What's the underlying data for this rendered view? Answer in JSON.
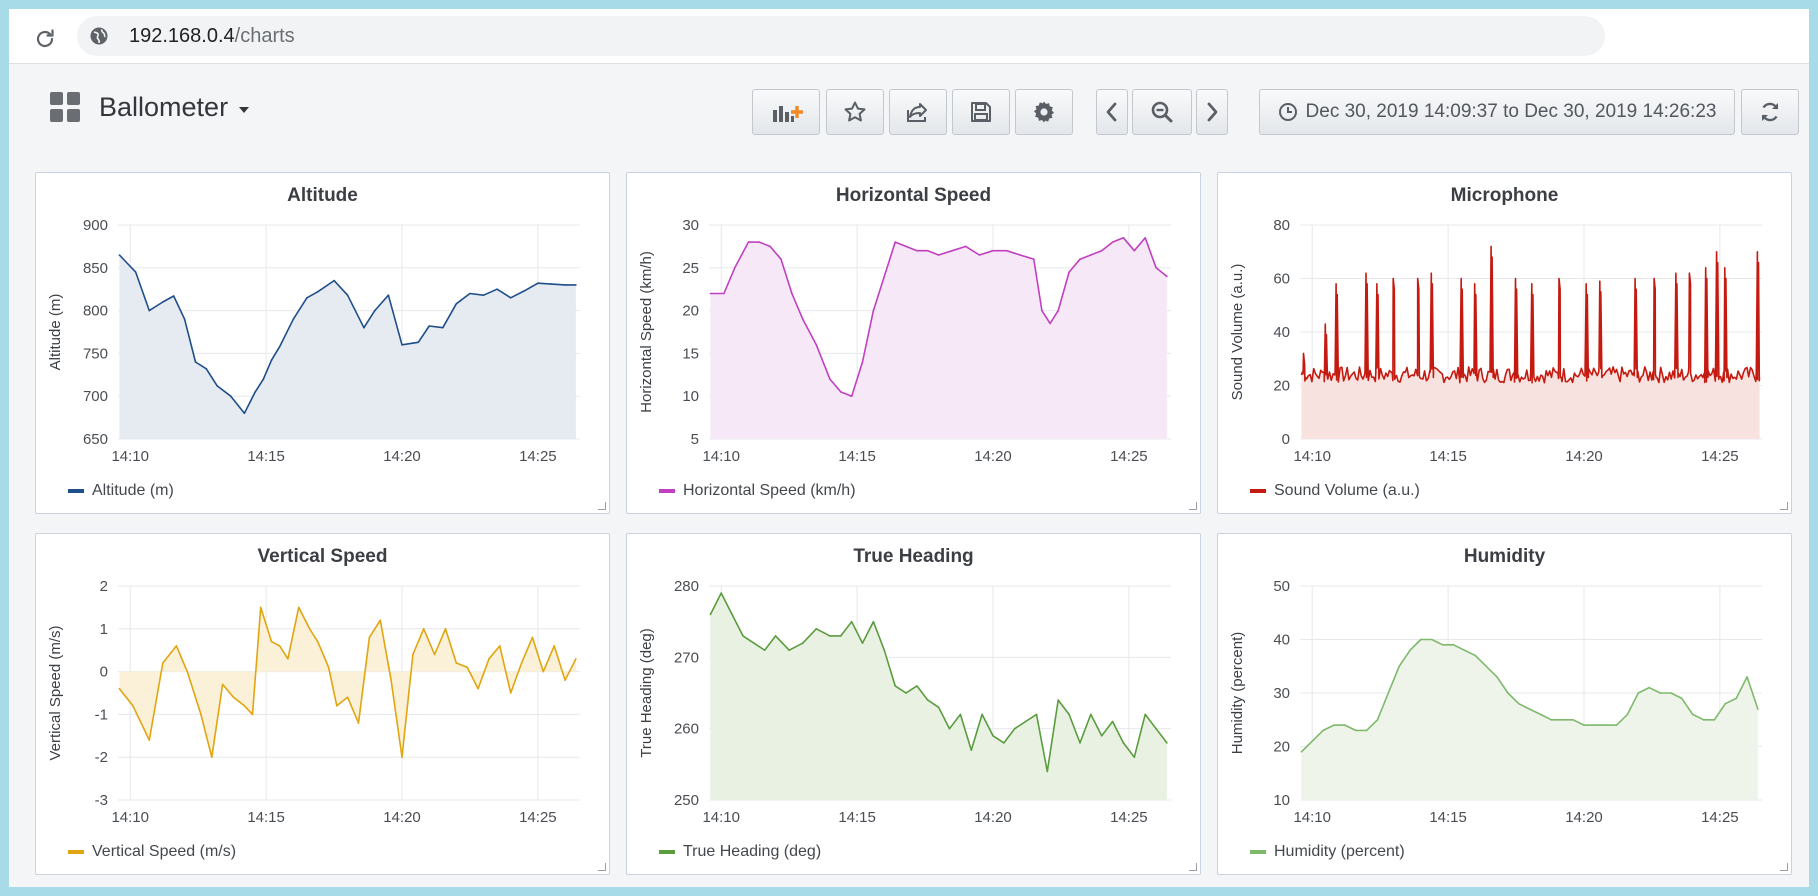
{
  "browser": {
    "url_host": "192.168.0.4",
    "url_path": "/charts"
  },
  "dashboard": {
    "title": "Ballometer"
  },
  "toolbar": {
    "buttons": [
      "add-panel",
      "star",
      "share",
      "save",
      "settings"
    ],
    "time_nav": [
      "back",
      "zoom-out",
      "forward"
    ],
    "time_range": "Dec 30, 2019 14:09:37 to Dec 30, 2019 14:26:23",
    "refresh": "refresh"
  },
  "colors": {
    "altitude": "#1f4e89",
    "horizontal_speed": "#c040c0",
    "microphone": "#c41a10",
    "vertical_speed": "#e0a510",
    "true_heading": "#5a9c3e",
    "humidity": "#7fb96b"
  },
  "panels": [
    {
      "title": "Altitude",
      "legend": "Altitude (m)"
    },
    {
      "title": "Horizontal Speed",
      "legend": "Horizontal Speed (km/h)"
    },
    {
      "title": "Microphone",
      "legend": "Sound Volume (a.u.)"
    },
    {
      "title": "Vertical Speed",
      "legend": "Vertical Speed (m/s)"
    },
    {
      "title": "True Heading",
      "legend": "True Heading (deg)"
    },
    {
      "title": "Humidity",
      "legend": "Humidity (percent)"
    }
  ],
  "chart_data": [
    {
      "type": "area",
      "title": "Altitude",
      "ylabel": "Altitude (m)",
      "ylim": [
        650,
        900
      ],
      "yticks": [
        650,
        700,
        750,
        800,
        850,
        900
      ],
      "xticks": [
        "14:10",
        "14:15",
        "14:20",
        "14:25"
      ],
      "grid": true,
      "legend": "bottom-left",
      "series": [
        {
          "name": "Altitude (m)",
          "color": "#1f4e89",
          "fill": "#e6ebf2",
          "x": [
            9.6,
            10.2,
            10.7,
            11.2,
            11.6,
            12.0,
            12.4,
            12.8,
            13.2,
            13.7,
            14.2,
            14.6,
            14.9,
            15.2,
            15.5,
            16.0,
            16.5,
            16.9,
            17.5,
            18.0,
            18.6,
            19.0,
            19.5,
            20.0,
            20.6,
            21.0,
            21.5,
            22.0,
            22.5,
            23.0,
            23.5,
            24.0,
            24.5,
            25.0,
            25.5,
            26.0,
            26.4
          ],
          "y": [
            865,
            845,
            800,
            810,
            817,
            790,
            740,
            732,
            712,
            700,
            680,
            705,
            720,
            742,
            758,
            790,
            815,
            822,
            835,
            818,
            780,
            800,
            818,
            760,
            763,
            782,
            780,
            808,
            820,
            818,
            825,
            815,
            823,
            832,
            831,
            830,
            830
          ]
        }
      ]
    },
    {
      "type": "area",
      "title": "Horizontal Speed",
      "ylabel": "Horizontal Speed (km/h)",
      "ylim": [
        5,
        30
      ],
      "yticks": [
        5,
        10,
        15,
        20,
        25,
        30
      ],
      "xticks": [
        "14:10",
        "14:15",
        "14:20",
        "14:25"
      ],
      "grid": true,
      "legend": "bottom-left",
      "series": [
        {
          "name": "Horizontal Speed (km/h)",
          "color": "#c040c0",
          "fill": "#f7e8f7",
          "x": [
            9.6,
            10.1,
            10.5,
            11.0,
            11.4,
            11.8,
            12.2,
            12.6,
            13.0,
            13.5,
            14.0,
            14.4,
            14.8,
            15.2,
            15.6,
            16.0,
            16.4,
            16.8,
            17.2,
            17.6,
            18.0,
            18.5,
            19.0,
            19.5,
            20.0,
            20.5,
            21.0,
            21.5,
            21.8,
            22.1,
            22.4,
            22.8,
            23.2,
            23.6,
            24.0,
            24.4,
            24.8,
            25.2,
            25.6,
            26.0,
            26.4
          ],
          "y": [
            22,
            22,
            25,
            28,
            28,
            27.5,
            26,
            22,
            19,
            16,
            12,
            10.5,
            10,
            14,
            20,
            24,
            28,
            27.5,
            27,
            27,
            26.5,
            27,
            27.5,
            26.5,
            27,
            27,
            26.5,
            26,
            20,
            18.5,
            20,
            24.5,
            26,
            26.5,
            27,
            28,
            28.5,
            27,
            28.5,
            25,
            24
          ]
        }
      ]
    },
    {
      "type": "area",
      "title": "Microphone",
      "ylabel": "Sound Volume (a.u.)",
      "ylim": [
        0,
        80
      ],
      "yticks": [
        0,
        20,
        40,
        60,
        80
      ],
      "xticks": [
        "14:10",
        "14:15",
        "14:20",
        "14:25"
      ],
      "grid": true,
      "legend": "bottom-left",
      "series": [
        {
          "name": "Sound Volume (a.u.)",
          "color": "#c41a10",
          "fill": "#f8e2df",
          "base": 24,
          "baseline_noise": 3,
          "spikes": [
            [
              9.7,
              32
            ],
            [
              10.5,
              43
            ],
            [
              10.9,
              58
            ],
            [
              12.0,
              62
            ],
            [
              12.4,
              58
            ],
            [
              13.0,
              60
            ],
            [
              13.9,
              60
            ],
            [
              14.4,
              62
            ],
            [
              15.5,
              60
            ],
            [
              16.0,
              58
            ],
            [
              16.6,
              72
            ],
            [
              17.5,
              60
            ],
            [
              18.1,
              58
            ],
            [
              19.1,
              60
            ],
            [
              20.1,
              58
            ],
            [
              20.6,
              59
            ],
            [
              21.9,
              60
            ],
            [
              22.6,
              60
            ],
            [
              23.4,
              62
            ],
            [
              23.9,
              62
            ],
            [
              24.5,
              64
            ],
            [
              24.9,
              70
            ],
            [
              25.2,
              64
            ],
            [
              26.4,
              70
            ]
          ]
        }
      ]
    },
    {
      "type": "area",
      "title": "Vertical Speed",
      "ylabel": "Vertical Speed (m/s)",
      "ylim": [
        -3,
        2
      ],
      "yticks": [
        -3,
        -2,
        -1,
        0,
        1,
        2
      ],
      "xticks": [
        "14:10",
        "14:15",
        "14:20",
        "14:25"
      ],
      "grid": true,
      "legend": "bottom-left",
      "series": [
        {
          "name": "Vertical Speed (m/s)",
          "color": "#e0a510",
          "fill": "#fbf1d8",
          "x": [
            9.6,
            10.1,
            10.7,
            11.2,
            11.7,
            12.1,
            12.6,
            13.0,
            13.4,
            13.8,
            14.2,
            14.5,
            14.8,
            15.2,
            15.5,
            15.8,
            16.2,
            16.6,
            16.9,
            17.3,
            17.6,
            18.0,
            18.4,
            18.8,
            19.2,
            19.6,
            20.0,
            20.4,
            20.8,
            21.2,
            21.6,
            22.0,
            22.4,
            22.8,
            23.2,
            23.6,
            24.0,
            24.4,
            24.8,
            25.2,
            25.6,
            26.0,
            26.4
          ],
          "y": [
            -0.4,
            -0.8,
            -1.6,
            0.2,
            0.6,
            0.0,
            -1.0,
            -2.0,
            -0.3,
            -0.6,
            -0.8,
            -1.0,
            1.5,
            0.7,
            0.6,
            0.3,
            1.5,
            1.0,
            0.7,
            0.1,
            -0.8,
            -0.6,
            -1.2,
            0.8,
            1.2,
            -0.2,
            -2.0,
            0.4,
            1.0,
            0.4,
            1.0,
            0.2,
            0.1,
            -0.4,
            0.3,
            0.6,
            -0.5,
            0.2,
            0.8,
            0.0,
            0.6,
            -0.2,
            0.3
          ]
        }
      ]
    },
    {
      "type": "area",
      "title": "True Heading",
      "ylabel": "True Heading (deg)",
      "ylim": [
        250,
        280
      ],
      "yticks": [
        250,
        260,
        270,
        280
      ],
      "xticks": [
        "14:10",
        "14:15",
        "14:20",
        "14:25"
      ],
      "grid": true,
      "legend": "bottom-left",
      "series": [
        {
          "name": "True Heading (deg)",
          "color": "#5a9c3e",
          "fill": "#e9f1e3",
          "x": [
            9.6,
            10.0,
            10.4,
            10.8,
            11.2,
            11.6,
            12.0,
            12.5,
            13.0,
            13.5,
            14.0,
            14.4,
            14.8,
            15.2,
            15.6,
            16.0,
            16.4,
            16.8,
            17.2,
            17.6,
            18.0,
            18.4,
            18.8,
            19.2,
            19.6,
            20.0,
            20.4,
            20.8,
            21.2,
            21.6,
            22.0,
            22.4,
            22.8,
            23.2,
            23.6,
            24.0,
            24.4,
            24.8,
            25.2,
            25.6,
            26.0,
            26.4
          ],
          "y": [
            276,
            279,
            276,
            273,
            272,
            271,
            273,
            271,
            272,
            274,
            273,
            273,
            275,
            272,
            275,
            271,
            266,
            265,
            266,
            264,
            263,
            260,
            262,
            257,
            262,
            259,
            258,
            260,
            261,
            262,
            254,
            264,
            262,
            258,
            262,
            259,
            261,
            258,
            256,
            262,
            260,
            258
          ]
        }
      ]
    },
    {
      "type": "area",
      "title": "Humidity",
      "ylabel": "Humidity (percent)",
      "ylim": [
        10,
        50
      ],
      "yticks": [
        10,
        20,
        30,
        40,
        50
      ],
      "xticks": [
        "14:10",
        "14:15",
        "14:20",
        "14:25"
      ],
      "grid": true,
      "legend": "bottom-left",
      "series": [
        {
          "name": "Humidity (percent)",
          "color": "#7fb96b",
          "fill": "#eef4ea",
          "x": [
            9.6,
            10.0,
            10.4,
            10.8,
            11.2,
            11.6,
            12.0,
            12.4,
            12.8,
            13.2,
            13.6,
            14.0,
            14.4,
            14.8,
            15.2,
            15.6,
            16.0,
            16.4,
            16.8,
            17.2,
            17.6,
            18.0,
            18.4,
            18.8,
            19.2,
            19.6,
            20.0,
            20.4,
            20.8,
            21.2,
            21.6,
            22.0,
            22.4,
            22.8,
            23.2,
            23.6,
            24.0,
            24.4,
            24.8,
            25.2,
            25.6,
            26.0,
            26.4
          ],
          "y": [
            19,
            21,
            23,
            24,
            24,
            23,
            23,
            25,
            30,
            35,
            38,
            40,
            40,
            39,
            39,
            38,
            37,
            35,
            33,
            30,
            28,
            27,
            26,
            25,
            25,
            25,
            24,
            24,
            24,
            24,
            26,
            30,
            31,
            30,
            30,
            29,
            26,
            25,
            25,
            28,
            29,
            33,
            27
          ]
        }
      ]
    }
  ]
}
